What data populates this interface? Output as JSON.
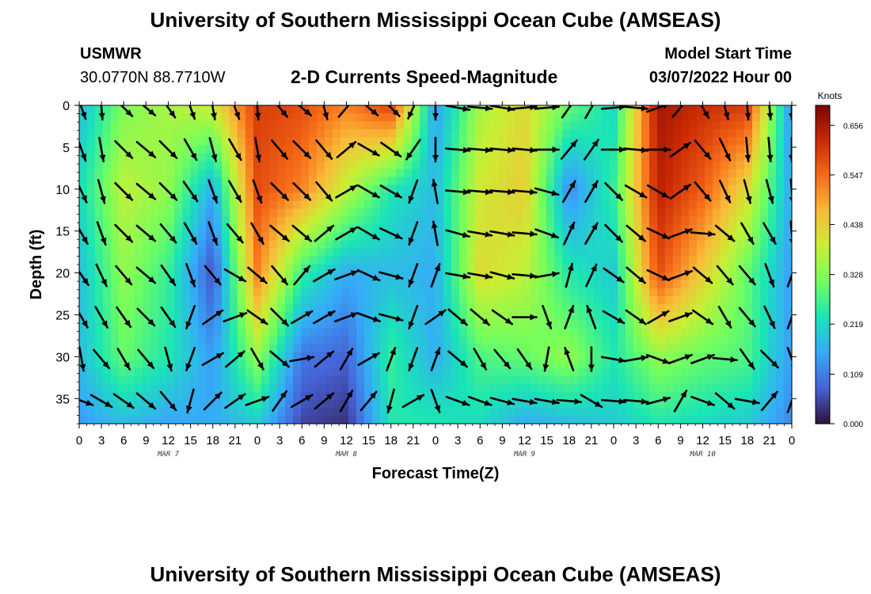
{
  "header": {
    "title": "University of Southern Mississippi Ocean Cube (AMSEAS)",
    "station": "USMWR",
    "location": "30.0770N  88.7710W",
    "subtitle": "2-D Currents Speed-Magnitude",
    "model_start_label": "Model Start Time",
    "model_start_value": "03/07/2022 Hour 00"
  },
  "footer": {
    "title": "University of Southern Mississippi Ocean Cube (AMSEAS)"
  },
  "chart_data": {
    "type": "heatmap",
    "title": "2-D Currents Speed-Magnitude",
    "xlabel": "Forecast Time(Z)",
    "ylabel": "Depth (ft)",
    "xlim": [
      0,
      96
    ],
    "ylim": [
      0,
      38
    ],
    "y_inverted": true,
    "x_ticks": [
      0,
      3,
      6,
      9,
      12,
      15,
      18,
      21,
      24,
      27,
      30,
      33,
      36,
      39,
      42,
      45,
      48,
      51,
      54,
      57,
      60,
      63,
      66,
      69,
      72,
      75,
      78,
      81,
      84,
      87,
      90,
      93,
      96
    ],
    "x_tick_labels": [
      "0",
      "3",
      "6",
      "9",
      "12",
      "15",
      "18",
      "21",
      "0",
      "3",
      "6",
      "9",
      "12",
      "15",
      "18",
      "21",
      "0",
      "3",
      "6",
      "9",
      "12",
      "15",
      "18",
      "21",
      "0",
      "3",
      "6",
      "9",
      "12",
      "15",
      "18",
      "21",
      "0"
    ],
    "y_ticks": [
      0,
      5,
      10,
      15,
      20,
      25,
      30,
      35
    ],
    "y_tick_labels": [
      "0",
      "5",
      "10",
      "15",
      "20",
      "25",
      "30",
      "35"
    ],
    "day_labels": [
      {
        "hour": 12,
        "text": "MAR 7"
      },
      {
        "hour": 36,
        "text": "MAR 8"
      },
      {
        "hour": 60,
        "text": "MAR 9"
      },
      {
        "hour": 84,
        "text": "MAR 10"
      }
    ],
    "colorbar": {
      "unit": "Knots",
      "min": 0.0,
      "max": 0.7,
      "ticks": [
        0.0,
        0.109,
        0.219,
        0.328,
        0.438,
        0.547,
        0.656
      ],
      "tick_labels": [
        "0.000",
        "0.109",
        "0.219",
        "0.328",
        "0.438",
        "0.547",
        "0.656"
      ],
      "colors": [
        "#30123b",
        "#4662d7",
        "#36aaf9",
        "#1ae4b6",
        "#72fe5e",
        "#c8ef34",
        "#faba39",
        "#f66b19",
        "#cb2a04",
        "#7a0403"
      ]
    },
    "speed_grid": {
      "hours": [
        0,
        6,
        12,
        18,
        24,
        30,
        36,
        42,
        48,
        54,
        60,
        66,
        72,
        78,
        84,
        90,
        96
      ],
      "depths": [
        0,
        10,
        20,
        30,
        38
      ],
      "values": [
        [
          0.18,
          0.22,
          0.18,
          0.18,
          0.14
        ],
        [
          0.32,
          0.38,
          0.34,
          0.3,
          0.18
        ],
        [
          0.36,
          0.34,
          0.26,
          0.24,
          0.15
        ],
        [
          0.4,
          0.16,
          0.06,
          0.14,
          0.16
        ],
        [
          0.6,
          0.58,
          0.52,
          0.34,
          0.2
        ],
        [
          0.58,
          0.52,
          0.26,
          0.1,
          0.05
        ],
        [
          0.52,
          0.38,
          0.16,
          0.08,
          0.03
        ],
        [
          0.6,
          0.24,
          0.18,
          0.26,
          0.24
        ],
        [
          0.14,
          0.18,
          0.16,
          0.16,
          0.24
        ],
        [
          0.36,
          0.4,
          0.42,
          0.28,
          0.22
        ],
        [
          0.42,
          0.44,
          0.38,
          0.3,
          0.16
        ],
        [
          0.3,
          0.12,
          0.24,
          0.34,
          0.18
        ],
        [
          0.22,
          0.26,
          0.2,
          0.24,
          0.2
        ],
        [
          0.66,
          0.64,
          0.58,
          0.34,
          0.24
        ],
        [
          0.62,
          0.56,
          0.44,
          0.3,
          0.22
        ],
        [
          0.6,
          0.42,
          0.3,
          0.28,
          0.2
        ],
        [
          0.12,
          0.15,
          0.14,
          0.14,
          0.12
        ]
      ]
    },
    "vector_grid": {
      "hours": [
        0,
        3,
        6,
        9,
        12,
        15,
        18,
        21,
        24,
        27,
        30,
        33,
        36,
        39,
        42,
        45,
        48,
        51,
        54,
        57,
        60,
        63,
        66,
        69,
        72,
        75,
        78,
        81,
        84,
        87,
        90,
        93,
        96
      ],
      "depths": [
        0,
        5,
        10,
        15,
        20,
        25,
        30,
        35
      ],
      "direction_deg": [
        [
          160,
          175,
          135,
          130,
          145,
          160,
          170,
          160,
          175,
          140,
          130,
          165,
          40,
          130,
          135,
          205,
          180,
          100,
          95,
          100,
          85,
          85,
          35,
          30,
          85,
          95,
          70,
          40,
          150,
          165,
          175,
          175,
          180
        ],
        [
          160,
          170,
          135,
          130,
          135,
          150,
          165,
          150,
          170,
          140,
          135,
          140,
          50,
          120,
          125,
          215,
          180,
          95,
          95,
          95,
          95,
          90,
          40,
          35,
          90,
          95,
          90,
          55,
          140,
          155,
          175,
          175,
          180
        ],
        [
          155,
          165,
          135,
          130,
          135,
          145,
          160,
          150,
          160,
          135,
          135,
          140,
          60,
          120,
          120,
          200,
          350,
          95,
          95,
          95,
          95,
          105,
          30,
          30,
          135,
          120,
          120,
          55,
          140,
          155,
          165,
          165,
          175
        ],
        [
          150,
          160,
          135,
          130,
          140,
          150,
          160,
          140,
          150,
          130,
          130,
          50,
          60,
          120,
          115,
          200,
          350,
          105,
          100,
          100,
          95,
          110,
          25,
          30,
          135,
          130,
          115,
          70,
          95,
          130,
          150,
          150,
          175
        ],
        [
          145,
          155,
          140,
          130,
          145,
          160,
          140,
          120,
          130,
          140,
          40,
          60,
          70,
          115,
          105,
          200,
          20,
          100,
          100,
          105,
          95,
          80,
          15,
          25,
          125,
          130,
          115,
          70,
          130,
          140,
          140,
          160,
          20
        ],
        [
          150,
          150,
          145,
          135,
          145,
          200,
          55,
          70,
          125,
          135,
          60,
          60,
          70,
          110,
          105,
          200,
          55,
          130,
          130,
          125,
          90,
          160,
          20,
          340,
          120,
          125,
          60,
          70,
          125,
          150,
          140,
          155,
          20
        ],
        [
          170,
          140,
          150,
          140,
          165,
          200,
          60,
          50,
          150,
          130,
          80,
          50,
          30,
          60,
          20,
          200,
          20,
          130,
          150,
          140,
          145,
          190,
          340,
          180,
          100,
          80,
          110,
          70,
          70,
          95,
          145,
          135,
          160
        ],
        [
          110,
          120,
          125,
          130,
          140,
          195,
          45,
          55,
          70,
          35,
          60,
          50,
          30,
          40,
          195,
          60,
          160,
          110,
          110,
          105,
          100,
          100,
          95,
          120,
          95,
          95,
          75,
          30,
          110,
          130,
          100,
          40,
          20
        ]
      ]
    }
  }
}
